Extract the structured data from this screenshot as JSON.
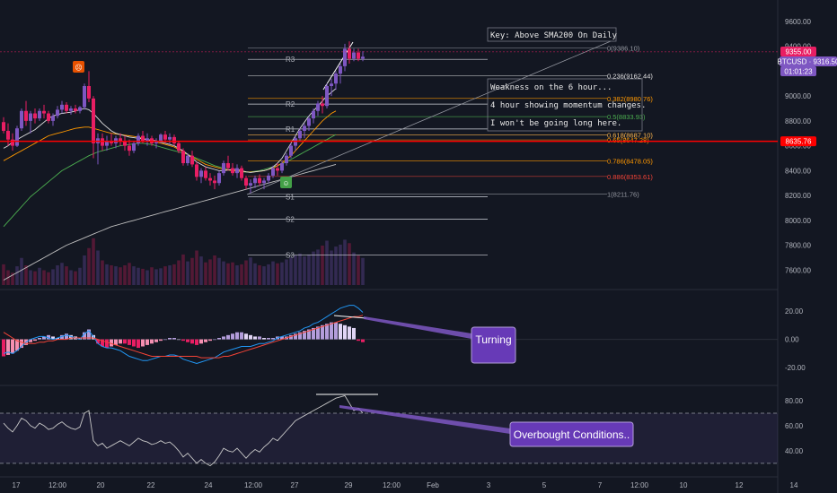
{
  "colors": {
    "background": "#131722",
    "up_candle": "#7e57c2",
    "down_candle": "#e91e63",
    "current_price": "#e91e63",
    "symbol_tag": "#7e57c2",
    "key_level": "#ff0000",
    "sma_white": "#e0e0e0",
    "sma_orange": "#ff9800",
    "sma_green": "#4caf50",
    "sma_200": "#c0c0c0",
    "macd_line": "#2196f3",
    "signal_line": "#f44336",
    "rsi_line": "#c8c8c8",
    "callout_fill": "#673ab7"
  },
  "header": {
    "key_note": "Key: Above SMA200 On Daily"
  },
  "notes": [
    "Weakness on the 6 hour...",
    "4 hour showing momentum changes.",
    "I won't be going long here."
  ],
  "callouts": {
    "macd": "Turning",
    "rsi": "Overbought Conditions.."
  },
  "price_axis": {
    "ticks": [
      "9600.00",
      "9400.00",
      "9200.00",
      "9000.00",
      "8800.00",
      "8600.00",
      "8400.00",
      "8200.00",
      "8000.00",
      "7800.00",
      "7600.00"
    ],
    "current_price_label": "9355.00",
    "symbol_label": "BTCUSD · 9316.50",
    "countdown": "01:01:23",
    "key_level_label": "8635.76"
  },
  "macd_axis": {
    "ticks": [
      "20.00",
      "0.00",
      "-20.00"
    ]
  },
  "rsi_axis": {
    "ticks": [
      "80.00",
      "60.00",
      "40.00"
    ]
  },
  "time_axis": {
    "labels": [
      "17",
      "12:00",
      "20",
      "22",
      "24",
      "12:00",
      "27",
      "29",
      "12:00",
      "Feb",
      "3",
      "5",
      "7",
      "12:00",
      "10",
      "12",
      "14"
    ]
  },
  "pivots": [
    "R3",
    "R2",
    "R1",
    "S1",
    "S2",
    "S3"
  ],
  "fib_labels": [
    "0(9386.10)",
    "0.236(9162.44)",
    "0.382(8980.76)",
    "0.5(8833.93)",
    "0.618(8687.10)",
    "0.65(8647.28)",
    "0.786(8478.05)",
    "0.886(8353.61)",
    "1(8211.76)"
  ],
  "chart_data": {
    "type": "candlestick",
    "symbol": "BTCUSD",
    "current_price": 9355.0,
    "last_price": 9316.5,
    "key_level": 8635.76,
    "ylim": [
      7480,
      9700
    ],
    "fib_levels": [
      {
        "ratio": 0,
        "price": 9386.1
      },
      {
        "ratio": 0.236,
        "price": 9162.44
      },
      {
        "ratio": 0.382,
        "price": 8980.76
      },
      {
        "ratio": 0.5,
        "price": 8833.93
      },
      {
        "ratio": 0.618,
        "price": 8687.1
      },
      {
        "ratio": 0.65,
        "price": 8647.28
      },
      {
        "ratio": 0.786,
        "price": 8478.05
      },
      {
        "ratio": 0.886,
        "price": 8353.61
      },
      {
        "ratio": 1,
        "price": 8211.76
      }
    ],
    "pivot_levels": [
      {
        "name": "R3",
        "price": 9295
      },
      {
        "name": "R2",
        "price": 8935
      },
      {
        "name": "R1",
        "price": 8735
      },
      {
        "name": "S1",
        "price": 8190
      },
      {
        "name": "S2",
        "price": 8010
      },
      {
        "name": "S3",
        "price": 7720
      }
    ],
    "candles": [
      [
        8790,
        8830,
        8700,
        8720
      ],
      [
        8720,
        8780,
        8600,
        8650
      ],
      [
        8650,
        8700,
        8560,
        8600
      ],
      [
        8600,
        8760,
        8590,
        8740
      ],
      [
        8740,
        8900,
        8720,
        8880
      ],
      [
        8880,
        8960,
        8760,
        8800
      ],
      [
        8800,
        8880,
        8700,
        8860
      ],
      [
        8860,
        8900,
        8780,
        8820
      ],
      [
        8820,
        8900,
        8800,
        8880
      ],
      [
        8880,
        8930,
        8820,
        8860
      ],
      [
        8860,
        8880,
        8780,
        8800
      ],
      [
        8800,
        8860,
        8760,
        8840
      ],
      [
        8840,
        8920,
        8820,
        8890
      ],
      [
        8890,
        8960,
        8860,
        8930
      ],
      [
        8930,
        8950,
        8860,
        8880
      ],
      [
        8880,
        8920,
        8850,
        8900
      ],
      [
        8900,
        8930,
        8860,
        8880
      ],
      [
        8880,
        8920,
        8860,
        8910
      ],
      [
        8910,
        9100,
        8890,
        9080
      ],
      [
        9080,
        9200,
        8950,
        8980
      ],
      [
        8980,
        9000,
        8500,
        8620
      ],
      [
        8620,
        8700,
        8450,
        8660
      ],
      [
        8660,
        8700,
        8560,
        8600
      ],
      [
        8600,
        8680,
        8560,
        8640
      ],
      [
        8640,
        8700,
        8600,
        8620
      ],
      [
        8620,
        8680,
        8580,
        8660
      ],
      [
        8660,
        8700,
        8600,
        8640
      ],
      [
        8640,
        8680,
        8560,
        8600
      ],
      [
        8600,
        8650,
        8520,
        8560
      ],
      [
        8560,
        8640,
        8540,
        8620
      ],
      [
        8620,
        8700,
        8600,
        8680
      ],
      [
        8680,
        8720,
        8620,
        8640
      ],
      [
        8640,
        8700,
        8600,
        8660
      ],
      [
        8660,
        8680,
        8600,
        8620
      ],
      [
        8620,
        8660,
        8580,
        8640
      ],
      [
        8640,
        8700,
        8620,
        8690
      ],
      [
        8690,
        8720,
        8620,
        8650
      ],
      [
        8650,
        8700,
        8610,
        8670
      ],
      [
        8670,
        8690,
        8600,
        8620
      ],
      [
        8620,
        8640,
        8540,
        8560
      ],
      [
        8560,
        8580,
        8440,
        8460
      ],
      [
        8460,
        8540,
        8440,
        8520
      ],
      [
        8520,
        8560,
        8430,
        8450
      ],
      [
        8450,
        8470,
        8320,
        8350
      ],
      [
        8350,
        8420,
        8300,
        8400
      ],
      [
        8400,
        8430,
        8320,
        8340
      ],
      [
        8340,
        8380,
        8280,
        8320
      ],
      [
        8320,
        8360,
        8250,
        8300
      ],
      [
        8300,
        8400,
        8280,
        8380
      ],
      [
        8380,
        8480,
        8360,
        8460
      ],
      [
        8460,
        8520,
        8400,
        8420
      ],
      [
        8420,
        8460,
        8360,
        8380
      ],
      [
        8380,
        8450,
        8340,
        8420
      ],
      [
        8420,
        8440,
        8320,
        8340
      ],
      [
        8340,
        8360,
        8250,
        8280
      ],
      [
        8280,
        8330,
        8220,
        8300
      ],
      [
        8300,
        8360,
        8260,
        8340
      ],
      [
        8340,
        8370,
        8280,
        8300
      ],
      [
        8300,
        8340,
        8250,
        8320
      ],
      [
        8320,
        8380,
        8300,
        8360
      ],
      [
        8360,
        8440,
        8340,
        8420
      ],
      [
        8420,
        8460,
        8360,
        8400
      ],
      [
        8400,
        8480,
        8380,
        8460
      ],
      [
        8460,
        8540,
        8440,
        8520
      ],
      [
        8520,
        8620,
        8500,
        8600
      ],
      [
        8600,
        8680,
        8560,
        8660
      ],
      [
        8660,
        8740,
        8640,
        8720
      ],
      [
        8720,
        8780,
        8660,
        8760
      ],
      [
        8760,
        8840,
        8720,
        8820
      ],
      [
        8820,
        8900,
        8780,
        8880
      ],
      [
        8880,
        8960,
        8840,
        8940
      ],
      [
        8940,
        9000,
        8860,
        8920
      ],
      [
        8920,
        9100,
        8900,
        9080
      ],
      [
        9080,
        9140,
        9000,
        9100
      ],
      [
        9100,
        9200,
        9050,
        9180
      ],
      [
        9180,
        9260,
        9100,
        9240
      ],
      [
        9240,
        9420,
        9200,
        9380
      ],
      [
        9380,
        9440,
        9260,
        9300
      ],
      [
        9300,
        9380,
        9280,
        9350
      ],
      [
        9350,
        9380,
        9280,
        9300
      ],
      [
        9300,
        9360,
        9280,
        9316
      ]
    ],
    "volume": [
      42,
      30,
      25,
      38,
      55,
      40,
      30,
      28,
      35,
      30,
      26,
      32,
      40,
      45,
      38,
      30,
      28,
      35,
      60,
      75,
      95,
      70,
      50,
      42,
      40,
      38,
      36,
      40,
      45,
      38,
      35,
      33,
      30,
      36,
      32,
      34,
      38,
      40,
      42,
      50,
      62,
      48,
      55,
      70,
      58,
      46,
      52,
      60,
      55,
      48,
      44,
      46,
      40,
      42,
      50,
      56,
      44,
      40,
      38,
      42,
      48,
      44,
      46,
      52,
      56,
      60,
      64,
      58,
      62,
      68,
      72,
      80,
      90,
      70,
      78,
      82,
      92,
      85,
      66,
      60,
      55
    ],
    "macd": [
      -10,
      -9,
      -10,
      -8,
      -5,
      -2,
      0,
      1,
      2,
      2,
      1,
      0,
      1,
      2,
      3,
      2,
      1,
      0,
      4,
      6,
      2,
      -3,
      -5,
      -6,
      -6,
      -7,
      -8,
      -10,
      -12,
      -13,
      -14,
      -15,
      -15,
      -14,
      -13,
      -12,
      -12,
      -11,
      -11,
      -12,
      -14,
      -15,
      -16,
      -17,
      -16,
      -15,
      -14,
      -13,
      -11,
      -9,
      -8,
      -7,
      -6,
      -5,
      -5,
      -5,
      -4,
      -3,
      -3,
      -2,
      -1,
      1,
      2,
      3,
      4,
      5,
      6,
      8,
      9,
      11,
      12,
      14,
      16,
      18,
      20,
      22,
      23,
      24,
      24,
      22,
      19
    ],
    "signal": [
      5,
      3,
      1,
      -1,
      -2,
      -3,
      -3,
      -3,
      -2,
      -2,
      -1,
      -1,
      0,
      0,
      0,
      1,
      1,
      1,
      1,
      1,
      1,
      0,
      -1,
      -2,
      -3,
      -4,
      -5,
      -6,
      -7,
      -8,
      -9,
      -10,
      -11,
      -12,
      -12,
      -12,
      -12,
      -12,
      -12,
      -12,
      -12,
      -12,
      -12,
      -12,
      -13,
      -13,
      -13,
      -13,
      -13,
      -12,
      -12,
      -11,
      -10,
      -9,
      -8,
      -7,
      -6,
      -5,
      -4,
      -3,
      -2,
      -1,
      0,
      1,
      2,
      3,
      4,
      5,
      6,
      7,
      8,
      9,
      10,
      11,
      12,
      13,
      14,
      15,
      16,
      16,
      17
    ],
    "histogram": [
      -12,
      -11,
      -10,
      -8,
      -6,
      -4,
      -2,
      -1,
      1,
      2,
      3,
      2,
      1,
      3,
      4,
      3,
      2,
      1,
      5,
      7,
      3,
      -3,
      -5,
      -6,
      -5,
      -4,
      -3,
      -3,
      -4,
      -5,
      -6,
      -5,
      -4,
      -3,
      -2,
      -1,
      0,
      1,
      1,
      0,
      -1,
      -2,
      -3,
      -4,
      -3,
      -2,
      -1,
      0,
      1,
      2,
      3,
      4,
      5,
      5,
      4,
      3,
      2,
      2,
      1,
      1,
      1,
      2,
      2,
      2,
      3,
      4,
      5,
      6,
      7,
      8,
      9,
      10,
      11,
      12,
      12,
      11,
      10,
      9,
      8,
      -1,
      -2
    ],
    "rsi": [
      62,
      58,
      55,
      60,
      66,
      64,
      60,
      58,
      62,
      60,
      57,
      58,
      61,
      63,
      60,
      58,
      57,
      59,
      70,
      72,
      48,
      44,
      46,
      42,
      44,
      46,
      48,
      46,
      44,
      47,
      50,
      48,
      47,
      45,
      46,
      48,
      46,
      47,
      44,
      40,
      35,
      38,
      34,
      30,
      33,
      30,
      28,
      31,
      36,
      42,
      40,
      39,
      42,
      38,
      34,
      38,
      41,
      39,
      43,
      46,
      50,
      48,
      52,
      56,
      60,
      64,
      66,
      68,
      70,
      72,
      74,
      76,
      78,
      80,
      82,
      83,
      84,
      78,
      72,
      74,
      70
    ],
    "sma_white": [
      8580,
      8600,
      8630,
      8650,
      8670,
      8690,
      8710,
      8730,
      8760,
      8790,
      8820,
      8840,
      8850,
      8860,
      8865,
      8870,
      8880,
      8890,
      8900,
      8890,
      8860,
      8820,
      8780,
      8750,
      8720,
      8700,
      8690,
      8680,
      8670,
      8665,
      8660,
      8655,
      8650,
      8645,
      8640,
      8630,
      8620,
      8610,
      8600,
      8580,
      8560,
      8530,
      8500,
      8470,
      8450,
      8430,
      8420,
      8410,
      8400,
      8400,
      8405,
      8410,
      8410,
      8400,
      8390,
      8385,
      8390,
      8395,
      8400,
      8410,
      8430,
      8460,
      8500,
      8560,
      8620,
      8680,
      8740,
      8790,
      8840,
      8880,
      8920,
      8960,
      9000,
      9030,
      9060
    ],
    "sma_orange": [
      8480,
      8500,
      8520,
      8540,
      8560,
      8580,
      8600,
      8620,
      8640,
      8660,
      8680,
      8690,
      8700,
      8710,
      8720,
      8730,
      8740,
      8745,
      8750,
      8750,
      8740,
      8730,
      8720,
      8710,
      8700,
      8695,
      8690,
      8685,
      8680,
      8675,
      8670,
      8660,
      8650,
      8640,
      8630,
      8620,
      8610,
      8600,
      8590,
      8570,
      8550,
      8530,
      8510,
      8490,
      8470,
      8450,
      8440,
      8430,
      8420,
      8410,
      8405,
      8400,
      8400,
      8395,
      8390,
      8388,
      8390,
      8395,
      8400,
      8410,
      8420,
      8440,
      8460,
      8490,
      8520,
      8560,
      8600,
      8640,
      8680,
      8720,
      8760,
      8800,
      8830,
      8860,
      8880
    ],
    "sma_green": [
      7950,
      7990,
      8030,
      8070,
      8110,
      8150,
      8190,
      8220,
      8250,
      8280,
      8310,
      8340,
      8370,
      8400,
      8420,
      8440,
      8460,
      8480,
      8500,
      8520,
      8535,
      8550,
      8560,
      8570,
      8580,
      8590,
      8600,
      8605,
      8610,
      8615,
      8620,
      8620,
      8615,
      8610,
      8600,
      8590,
      8580,
      8570,
      8560,
      8550,
      8540,
      8530,
      8515,
      8500,
      8485,
      8470,
      8455,
      8440,
      8430,
      8420,
      8410,
      8400,
      8395,
      8390,
      8388,
      8390,
      8395,
      8400,
      8410,
      8420,
      8430,
      8440,
      8455,
      8470,
      8490,
      8510,
      8530,
      8550,
      8570,
      8590,
      8610,
      8630,
      8650,
      8670,
      8690
    ],
    "sma_200": [
      7520,
      7540,
      7560,
      7580,
      7600,
      7620,
      7640,
      7660,
      7680,
      7700,
      7720,
      7740,
      7760,
      7780,
      7800,
      7815,
      7830,
      7845,
      7860,
      7875,
      7890,
      7905,
      7920,
      7935,
      7950,
      7960,
      7970,
      7980,
      7990,
      8000,
      8010,
      8020,
      8030,
      8040,
      8050,
      8060,
      8070,
      8080,
      8090,
      8100,
      8110,
      8120,
      8130,
      8140,
      8150,
      8160,
      8170,
      8180,
      8190,
      8200,
      8210,
      8220,
      8230,
      8240,
      8250,
      8260,
      8270,
      8280,
      8290,
      8300,
      8310,
      8320,
      8330,
      8340,
      8350,
      8360,
      8370,
      8380,
      8390,
      8400,
      8410,
      8420,
      8430,
      8440,
      8450
    ],
    "macd_ylim": [
      -30,
      32
    ],
    "rsi_ylim": [
      22,
      90
    ],
    "rsi_bands": [
      70,
      30
    ]
  }
}
